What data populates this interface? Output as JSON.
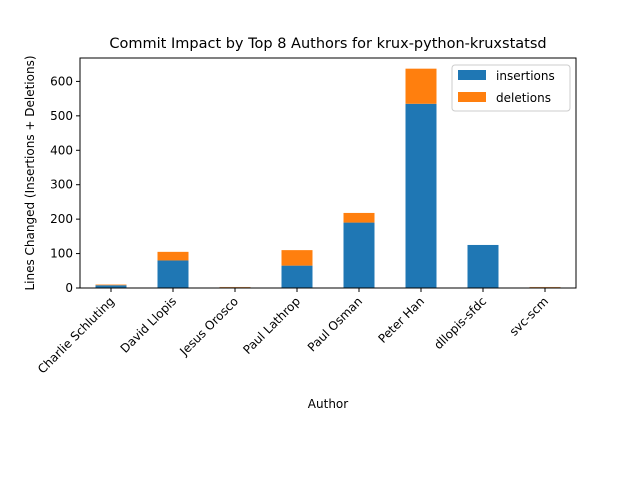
{
  "colors": {
    "insertions": "#1f77b4",
    "deletions": "#ff7f0e",
    "axis": "#000000",
    "legend_border": "#cccccc"
  },
  "chart_data": {
    "type": "bar",
    "stacked": true,
    "title": "Commit Impact by Top 8 Authors for krux-python-kruxstatsd",
    "xlabel": "Author",
    "ylabel": "Lines Changed (Insertions + Deletions)",
    "categories": [
      "Charlie Schluting",
      "David Llopis",
      "Jesus Orosco",
      "Paul Lathrop",
      "Paul Osman",
      "Peter Han",
      "dllopis-sfdc",
      "svc-scm"
    ],
    "series": [
      {
        "name": "insertions",
        "values": [
          8,
          80,
          2,
          65,
          190,
          535,
          125,
          2
        ]
      },
      {
        "name": "deletions",
        "values": [
          2,
          25,
          1,
          45,
          28,
          102,
          0,
          1
        ]
      }
    ],
    "ylim": [
      0,
      668
    ],
    "yticks": [
      0,
      100,
      200,
      300,
      400,
      500,
      600
    ],
    "legend_position": "upper right",
    "grid": false
  }
}
